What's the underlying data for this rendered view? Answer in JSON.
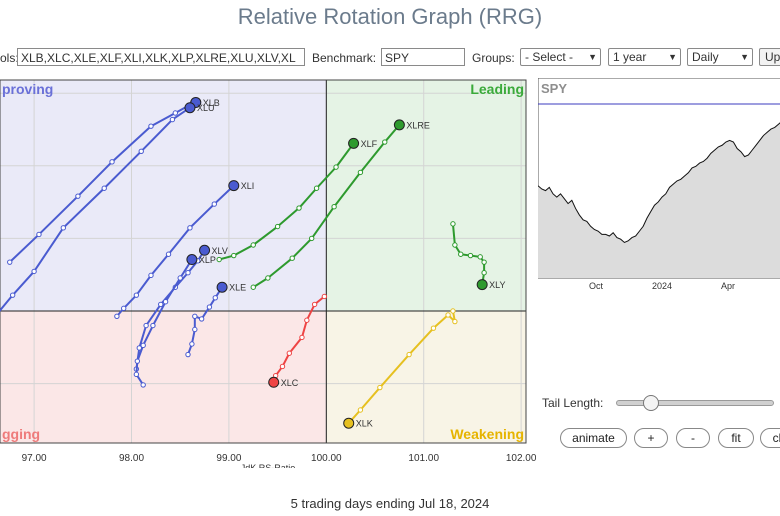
{
  "title": "Relative Rotation Graph (RRG)",
  "controls": {
    "symbols_label": "ols:",
    "symbols_value": "XLB,XLC,XLE,XLF,XLI,XLK,XLP,XLRE,XLU,XLV,XL",
    "benchmark_label": "Benchmark:",
    "benchmark_value": "SPY",
    "groups_label": "Groups:",
    "groups_value": "- Select -",
    "period_value": "1 year",
    "frequency_value": "Daily",
    "update_label": "Up"
  },
  "chart_data": [
    {
      "type": "scatter",
      "title": "",
      "xlabel": "JdK RS-Ratio",
      "ylabel": "",
      "xlim": [
        96.65,
        102.05
      ],
      "ylim": [
        98.55,
        101.3
      ],
      "x_ticks": [
        "97.00",
        "98.00",
        "99.00",
        "100.00",
        "101.00",
        "102.00"
      ],
      "center": [
        100,
        99.55
      ],
      "quadrants": [
        {
          "name": "Improving",
          "label": "proving",
          "color": "#6a70d8",
          "fill": "#eaeaf8"
        },
        {
          "name": "Leading",
          "label": "Leading",
          "color": "#3aaa3a",
          "fill": "#e5f3e5"
        },
        {
          "name": "Lagging",
          "label": "gging",
          "color": "#ee7b7b",
          "fill": "#fbe7e7"
        },
        {
          "name": "Weakening",
          "label": "Weakening",
          "color": "#e6b400",
          "fill": "#f8f4e6"
        }
      ],
      "series": [
        {
          "name": "XLB",
          "color": "#4a5bd0",
          "tail": [
            [
              96.75,
              99.92
            ],
            [
              97.05,
              100.13
            ],
            [
              97.45,
              100.42
            ],
            [
              97.8,
              100.68
            ],
            [
              98.2,
              100.95
            ],
            [
              98.45,
              101.05
            ],
            [
              98.62,
              101.12
            ],
            [
              98.66,
              101.13
            ]
          ]
        },
        {
          "name": "XLU",
          "color": "#4a5bd0",
          "tail": [
            [
              96.6,
              99.51
            ],
            [
              96.78,
              99.67
            ],
            [
              97.0,
              99.85
            ],
            [
              97.3,
              100.18
            ],
            [
              97.72,
              100.48
            ],
            [
              98.1,
              100.76
            ],
            [
              98.42,
              101.0
            ],
            [
              98.6,
              101.09
            ]
          ]
        },
        {
          "name": "XLI",
          "color": "#4a5bd0",
          "tail": [
            [
              97.85,
              99.51
            ],
            [
              97.92,
              99.57
            ],
            [
              98.05,
              99.67
            ],
            [
              98.2,
              99.82
            ],
            [
              98.38,
              99.98
            ],
            [
              98.6,
              100.18
            ],
            [
              98.85,
              100.36
            ],
            [
              99.05,
              100.5
            ]
          ]
        },
        {
          "name": "XLV",
          "color": "#4a5bd0",
          "tail": [
            [
              98.05,
              99.11
            ],
            [
              98.08,
              99.27
            ],
            [
              98.15,
              99.44
            ],
            [
              98.3,
              99.6
            ],
            [
              98.45,
              99.73
            ],
            [
              98.58,
              99.84
            ],
            [
              98.68,
              99.93
            ],
            [
              98.75,
              100.01
            ]
          ]
        },
        {
          "name": "XLP",
          "color": "#4a5bd0",
          "tail": [
            [
              98.12,
              98.99
            ],
            [
              98.05,
              99.07
            ],
            [
              98.06,
              99.17
            ],
            [
              98.12,
              99.29
            ],
            [
              98.22,
              99.44
            ],
            [
              98.35,
              99.62
            ],
            [
              98.5,
              99.8
            ],
            [
              98.62,
              99.94
            ]
          ]
        },
        {
          "name": "XLE",
          "color": "#4a5bd0",
          "tail": [
            [
              98.58,
              99.22
            ],
            [
              98.62,
              99.3
            ],
            [
              98.65,
              99.41
            ],
            [
              98.65,
              99.51
            ],
            [
              98.72,
              99.49
            ],
            [
              98.8,
              99.58
            ],
            [
              98.86,
              99.65
            ],
            [
              98.93,
              99.73
            ]
          ]
        },
        {
          "name": "XLF",
          "color": "#2e9a2e",
          "tail": [
            [
              98.9,
              99.94
            ],
            [
              99.05,
              99.97
            ],
            [
              99.25,
              100.05
            ],
            [
              99.5,
              100.19
            ],
            [
              99.72,
              100.33
            ],
            [
              99.9,
              100.48
            ],
            [
              100.1,
              100.64
            ],
            [
              100.28,
              100.82
            ]
          ]
        },
        {
          "name": "XLRE",
          "color": "#2e9a2e",
          "tail": [
            [
              99.25,
              99.73
            ],
            [
              99.4,
              99.8
            ],
            [
              99.65,
              99.95
            ],
            [
              99.85,
              100.1
            ],
            [
              100.08,
              100.34
            ],
            [
              100.35,
              100.6
            ],
            [
              100.6,
              100.83
            ],
            [
              100.75,
              100.96
            ]
          ]
        },
        {
          "name": "XLY",
          "color": "#2e9a2e",
          "tail": [
            [
              101.3,
              100.21
            ],
            [
              101.32,
              100.05
            ],
            [
              101.38,
              99.98
            ],
            [
              101.48,
              99.97
            ],
            [
              101.58,
              99.96
            ],
            [
              101.62,
              99.92
            ],
            [
              101.62,
              99.84
            ],
            [
              101.6,
              99.75
            ]
          ]
        },
        {
          "name": "XLC",
          "color": "#ee4444",
          "tail": [
            [
              99.98,
              99.66
            ],
            [
              99.88,
              99.6
            ],
            [
              99.8,
              99.48
            ],
            [
              99.75,
              99.35
            ],
            [
              99.62,
              99.23
            ],
            [
              99.55,
              99.13
            ],
            [
              99.48,
              99.06
            ],
            [
              99.46,
              99.01
            ]
          ]
        },
        {
          "name": "XLK",
          "color": "#e6c020",
          "tail": [
            [
              101.3,
              99.55
            ],
            [
              101.32,
              99.47
            ],
            [
              101.25,
              99.52
            ],
            [
              101.1,
              99.42
            ],
            [
              100.85,
              99.22
            ],
            [
              100.55,
              98.97
            ],
            [
              100.35,
              98.8
            ],
            [
              100.23,
              98.7
            ]
          ]
        }
      ]
    },
    {
      "type": "area",
      "title": "SPY",
      "x_ticks": [
        "Oct",
        "2024",
        "Apr"
      ],
      "ylim": [
        0,
        1
      ],
      "reference_line": 0.92,
      "values": [
        0.52,
        0.5,
        0.49,
        0.51,
        0.47,
        0.45,
        0.47,
        0.44,
        0.41,
        0.43,
        0.38,
        0.34,
        0.31,
        0.3,
        0.27,
        0.25,
        0.24,
        0.22,
        0.22,
        0.21,
        0.23,
        0.2,
        0.19,
        0.17,
        0.18,
        0.2,
        0.21,
        0.24,
        0.27,
        0.32,
        0.36,
        0.4,
        0.42,
        0.45,
        0.47,
        0.51,
        0.53,
        0.55,
        0.56,
        0.58,
        0.6,
        0.63,
        0.64,
        0.66,
        0.67,
        0.69,
        0.72,
        0.74,
        0.76,
        0.77,
        0.79,
        0.8,
        0.79,
        0.75,
        0.73,
        0.7,
        0.71,
        0.74,
        0.77,
        0.8,
        0.83,
        0.85,
        0.87,
        0.88,
        0.9,
        0.92,
        0.93
      ]
    }
  ],
  "panel": {
    "tail_length_label": "Tail Length:",
    "tail_length_fraction": 0.18,
    "buttons": {
      "animate": "animate",
      "plus": "+",
      "minus": "-",
      "fit": "fit",
      "clear": "cl"
    }
  },
  "footer": "5 trading days ending Jul 18, 2024"
}
